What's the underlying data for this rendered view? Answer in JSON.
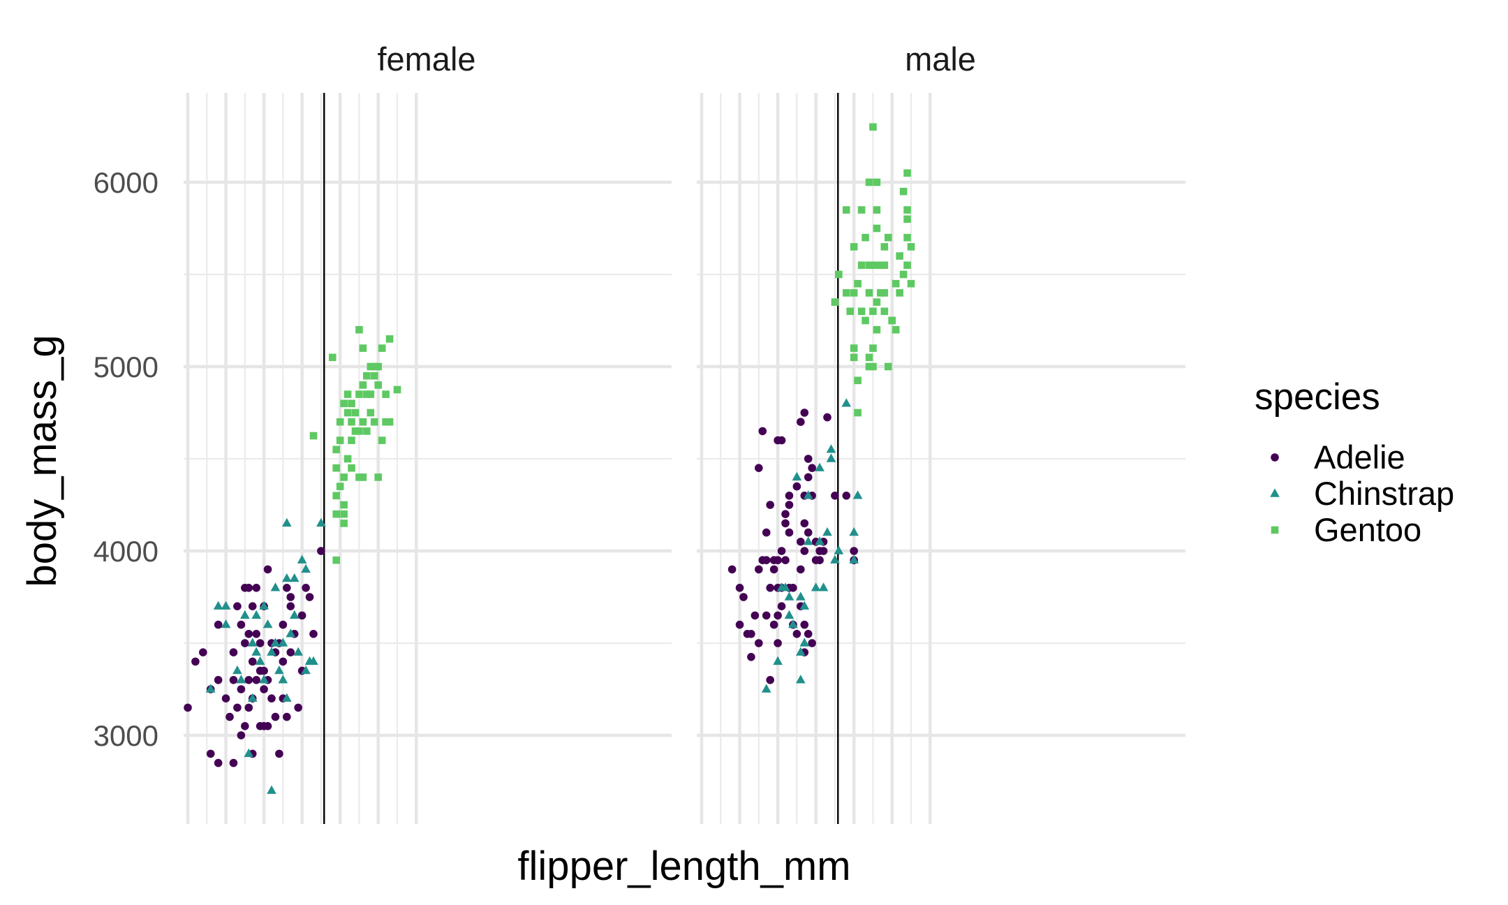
{
  "chart_data": {
    "type": "scatter",
    "title": "",
    "xlabel": "flipper_length_mm",
    "ylabel": "body_mass_g",
    "xlim": [
      168,
      234
    ],
    "ylim": [
      2550,
      6500
    ],
    "yticks": [
      3000,
      4000,
      5000,
      6000
    ],
    "x_tick_labels_shown": false,
    "grid": true,
    "legend": {
      "title": "species",
      "position": "right"
    },
    "facets": [
      "female",
      "male"
    ],
    "series": [
      {
        "name": "Adelie",
        "color": "#440154",
        "shape": "circle"
      },
      {
        "name": "Chinstrap",
        "color": "#21908C",
        "shape": "triangle"
      },
      {
        "name": "Gentoo",
        "color": "#5EC962",
        "shape": "square"
      }
    ],
    "vlines": {
      "female": 205.8,
      "male": 205.8
    },
    "points": {
      "female": {
        "Adelie": [
          [
            170,
            3150
          ],
          [
            172,
            3400
          ],
          [
            174,
            3450
          ],
          [
            176,
            2900
          ],
          [
            176,
            3250
          ],
          [
            178,
            2850
          ],
          [
            178,
            3300
          ],
          [
            178,
            3600
          ],
          [
            180,
            3200
          ],
          [
            181,
            3100
          ],
          [
            182,
            3450
          ],
          [
            182,
            2850
          ],
          [
            182,
            3300
          ],
          [
            183,
            3150
          ],
          [
            183,
            3700
          ],
          [
            184,
            3600
          ],
          [
            184,
            3000
          ],
          [
            184,
            3250
          ],
          [
            185,
            3800
          ],
          [
            185,
            3050
          ],
          [
            185,
            3500
          ],
          [
            186,
            3300
          ],
          [
            186,
            3550
          ],
          [
            186,
            3800
          ],
          [
            186,
            3150
          ],
          [
            187,
            3400
          ],
          [
            187,
            2900
          ],
          [
            187,
            3700
          ],
          [
            187,
            3200
          ],
          [
            188,
            3300
          ],
          [
            188,
            3550
          ],
          [
            188,
            3800
          ],
          [
            189,
            3350
          ],
          [
            189,
            3050
          ],
          [
            189,
            3500
          ],
          [
            190,
            3050
          ],
          [
            190,
            3350
          ],
          [
            190,
            3700
          ],
          [
            190,
            3250
          ],
          [
            191,
            3300
          ],
          [
            191,
            3900
          ],
          [
            191,
            3050
          ],
          [
            192,
            3200
          ],
          [
            192,
            3500
          ],
          [
            193,
            3450
          ],
          [
            193,
            3100
          ],
          [
            194,
            2900
          ],
          [
            194,
            3500
          ],
          [
            195,
            3400
          ],
          [
            195,
            3200
          ],
          [
            195,
            3600
          ],
          [
            196,
            3100
          ],
          [
            196,
            3800
          ],
          [
            197,
            3700
          ],
          [
            197,
            3750
          ],
          [
            197,
            3450
          ],
          [
            198,
            3550
          ],
          [
            199,
            3150
          ],
          [
            200,
            3350
          ],
          [
            200,
            3650
          ],
          [
            201,
            3800
          ],
          [
            202,
            3750
          ],
          [
            203,
            3550
          ],
          [
            205,
            4000
          ]
        ],
        "Chinstrap": [
          [
            176,
            3250
          ],
          [
            178,
            3700
          ],
          [
            180,
            3600
          ],
          [
            180,
            3700
          ],
          [
            183,
            3350
          ],
          [
            184,
            3300
          ],
          [
            185,
            3650
          ],
          [
            186,
            2900
          ],
          [
            187,
            3200
          ],
          [
            187,
            3500
          ],
          [
            188,
            3650
          ],
          [
            188,
            3450
          ],
          [
            189,
            3400
          ],
          [
            190,
            3300
          ],
          [
            190,
            3700
          ],
          [
            191,
            3600
          ],
          [
            192,
            2700
          ],
          [
            192,
            3450
          ],
          [
            193,
            3500
          ],
          [
            193,
            3800
          ],
          [
            194,
            3350
          ],
          [
            195,
            3500
          ],
          [
            195,
            3300
          ],
          [
            196,
            3850
          ],
          [
            196,
            3200
          ],
          [
            197,
            3550
          ],
          [
            198,
            3850
          ],
          [
            198,
            3650
          ],
          [
            199,
            3450
          ],
          [
            200,
            3950
          ],
          [
            201,
            3900
          ],
          [
            201,
            3350
          ],
          [
            202,
            3400
          ],
          [
            203,
            3400
          ],
          [
            205,
            4150
          ],
          [
            196,
            4150
          ]
        ],
        "Gentoo": [
          [
            203,
            4625
          ],
          [
            208,
            5050
          ],
          [
            209,
            4550
          ],
          [
            209,
            4450
          ],
          [
            209,
            4300
          ],
          [
            209,
            4200
          ],
          [
            209,
            3950
          ],
          [
            210,
            4700
          ],
          [
            210,
            4600
          ],
          [
            210,
            4350
          ],
          [
            211,
            4250
          ],
          [
            211,
            4150
          ],
          [
            211,
            4200
          ],
          [
            211,
            4800
          ],
          [
            211,
            4400
          ],
          [
            212,
            4850
          ],
          [
            212,
            4500
          ],
          [
            212,
            4750
          ],
          [
            213,
            4600
          ],
          [
            213,
            4700
          ],
          [
            213,
            4800
          ],
          [
            213,
            4450
          ],
          [
            214,
            4650
          ],
          [
            214,
            4750
          ],
          [
            215,
            4400
          ],
          [
            215,
            4650
          ],
          [
            215,
            4850
          ],
          [
            215,
            5200
          ],
          [
            216,
            4900
          ],
          [
            216,
            4700
          ],
          [
            216,
            5100
          ],
          [
            216,
            4400
          ],
          [
            217,
            4950
          ],
          [
            217,
            4650
          ],
          [
            217,
            4850
          ],
          [
            218,
            4750
          ],
          [
            218,
            5000
          ],
          [
            218,
            4850
          ],
          [
            219,
            5000
          ],
          [
            219,
            4700
          ],
          [
            219,
            4950
          ],
          [
            220,
            4400
          ],
          [
            220,
            4900
          ],
          [
            220,
            5000
          ],
          [
            221,
            4600
          ],
          [
            221,
            5100
          ],
          [
            222,
            4850
          ],
          [
            222,
            4700
          ],
          [
            223,
            4700
          ],
          [
            223,
            5150
          ],
          [
            225,
            4875
          ]
        ]
      },
      "male": {
        "Adelie": [
          [
            178,
            3900
          ],
          [
            180,
            3800
          ],
          [
            180,
            3600
          ],
          [
            181,
            3750
          ],
          [
            182,
            3550
          ],
          [
            183,
            3425
          ],
          [
            183,
            3550
          ],
          [
            184,
            3650
          ],
          [
            185,
            3500
          ],
          [
            185,
            3900
          ],
          [
            185,
            4450
          ],
          [
            186,
            4650
          ],
          [
            186,
            3950
          ],
          [
            187,
            3650
          ],
          [
            187,
            3950
          ],
          [
            187,
            4100
          ],
          [
            188,
            4250
          ],
          [
            188,
            3800
          ],
          [
            188,
            3300
          ],
          [
            189,
            3600
          ],
          [
            189,
            3900
          ],
          [
            189,
            3950
          ],
          [
            190,
            4600
          ],
          [
            190,
            3950
          ],
          [
            190,
            3800
          ],
          [
            190,
            3650
          ],
          [
            190,
            3500
          ],
          [
            191,
            4600
          ],
          [
            191,
            3700
          ],
          [
            191,
            3800
          ],
          [
            191,
            4000
          ],
          [
            192,
            4200
          ],
          [
            192,
            4150
          ],
          [
            192,
            3950
          ],
          [
            193,
            4100
          ],
          [
            193,
            4250
          ],
          [
            193,
            3800
          ],
          [
            193,
            4300
          ],
          [
            194,
            3600
          ],
          [
            194,
            3800
          ],
          [
            195,
            3550
          ],
          [
            195,
            4350
          ],
          [
            196,
            3700
          ],
          [
            196,
            3900
          ],
          [
            196,
            4050
          ],
          [
            196,
            4700
          ],
          [
            197,
            4300
          ],
          [
            197,
            4000
          ],
          [
            197,
            3600
          ],
          [
            197,
            3450
          ],
          [
            197,
            4150
          ],
          [
            197,
            4750
          ],
          [
            198,
            4100
          ],
          [
            198,
            3550
          ],
          [
            198,
            4400
          ],
          [
            198,
            4500
          ],
          [
            199,
            3500
          ],
          [
            199,
            4450
          ],
          [
            199,
            4300
          ],
          [
            200,
            3950
          ],
          [
            200,
            4050
          ],
          [
            201,
            4000
          ],
          [
            201,
            3950
          ],
          [
            202,
            4000
          ],
          [
            202,
            4050
          ],
          [
            203,
            4725
          ],
          [
            205,
            4300
          ],
          [
            208,
            4300
          ],
          [
            210,
            4000
          ],
          [
            210,
            3950
          ]
        ],
        "Chinstrap": [
          [
            187,
            3250
          ],
          [
            190,
            3400
          ],
          [
            191,
            3800
          ],
          [
            192,
            3800
          ],
          [
            193,
            3650
          ],
          [
            193,
            3750
          ],
          [
            194,
            3600
          ],
          [
            195,
            4400
          ],
          [
            196,
            3450
          ],
          [
            196,
            3300
          ],
          [
            196,
            3750
          ],
          [
            197,
            3700
          ],
          [
            197,
            3500
          ],
          [
            198,
            4050
          ],
          [
            198,
            4300
          ],
          [
            200,
            3800
          ],
          [
            201,
            4050
          ],
          [
            201,
            4450
          ],
          [
            202,
            3800
          ],
          [
            203,
            4100
          ],
          [
            204,
            4500
          ],
          [
            204,
            4550
          ],
          [
            205,
            3950
          ],
          [
            206,
            4000
          ],
          [
            208,
            4800
          ],
          [
            210,
            4100
          ],
          [
            210,
            3950
          ],
          [
            211,
            4300
          ]
        ],
        "Gentoo": [
          [
            205,
            5350
          ],
          [
            206,
            5500
          ],
          [
            208,
            5850
          ],
          [
            208,
            5400
          ],
          [
            209,
            5300
          ],
          [
            210,
            5400
          ],
          [
            210,
            5650
          ],
          [
            210,
            5100
          ],
          [
            210,
            5050
          ],
          [
            211,
            4925
          ],
          [
            211,
            4750
          ],
          [
            211,
            5450
          ],
          [
            212,
            5550
          ],
          [
            212,
            5850
          ],
          [
            212,
            5300
          ],
          [
            213,
            5700
          ],
          [
            213,
            5250
          ],
          [
            214,
            5550
          ],
          [
            214,
            5400
          ],
          [
            214,
            5000
          ],
          [
            214,
            6000
          ],
          [
            214,
            5050
          ],
          [
            215,
            5000
          ],
          [
            215,
            5300
          ],
          [
            215,
            5550
          ],
          [
            215,
            5100
          ],
          [
            215,
            6300
          ],
          [
            216,
            5850
          ],
          [
            216,
            5200
          ],
          [
            216,
            5550
          ],
          [
            216,
            5350
          ],
          [
            216,
            5750
          ],
          [
            216,
            6000
          ],
          [
            217,
            5550
          ],
          [
            217,
            5400
          ],
          [
            218,
            5400
          ],
          [
            218,
            5550
          ],
          [
            218,
            5300
          ],
          [
            218,
            5650
          ],
          [
            219,
            5700
          ],
          [
            219,
            5000
          ],
          [
            220,
            5250
          ],
          [
            220,
            5250
          ],
          [
            221,
            5450
          ],
          [
            221,
            5200
          ],
          [
            222,
            5600
          ],
          [
            222,
            5400
          ],
          [
            223,
            5950
          ],
          [
            223,
            5500
          ],
          [
            224,
            5700
          ],
          [
            224,
            5850
          ],
          [
            224,
            5800
          ],
          [
            224,
            6050
          ],
          [
            224,
            5550
          ],
          [
            225,
            5650
          ],
          [
            225,
            5450
          ]
        ]
      }
    }
  }
}
